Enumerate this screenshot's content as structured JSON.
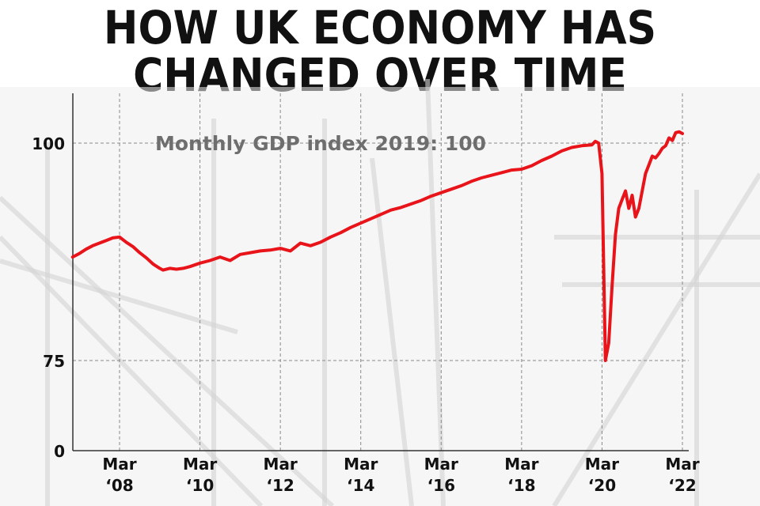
{
  "title": {
    "line1": "HOW UK ECONOMY HAS",
    "line2": "CHANGED OVER TIME"
  },
  "colors": {
    "line": "#e8141a",
    "title": "#111111",
    "subtitle": "#6e6e6e",
    "axis_text": "#111111",
    "background_tint": "#efefef"
  },
  "chart_data": {
    "type": "line",
    "title": "Monthly GDP index 2019: 100",
    "xlabel": "",
    "ylabel": "",
    "ylim": [
      0,
      100
    ],
    "y_ticks": [
      "100",
      "75",
      "0"
    ],
    "x_ticks": [
      {
        "date": "2008-03",
        "line1": "Mar",
        "line2": "‘08"
      },
      {
        "date": "2010-03",
        "line1": "Mar",
        "line2": "‘10"
      },
      {
        "date": "2012-03",
        "line1": "Mar",
        "line2": "‘12"
      },
      {
        "date": "2014-03",
        "line1": "Mar",
        "line2": "‘14"
      },
      {
        "date": "2016-03",
        "line1": "Mar",
        "line2": "‘16"
      },
      {
        "date": "2018-03",
        "line1": "Mar",
        "line2": "‘18"
      },
      {
        "date": "2020-03",
        "line1": "Mar",
        "line2": "‘20"
      },
      {
        "date": "2022-03",
        "line1": "Mar",
        "line2": "‘22"
      }
    ],
    "grid": "dashed",
    "axis_break": "between 0 and 75",
    "series": [
      {
        "values": [
          [
            "2007-01",
            86.9
          ],
          [
            "2007-03",
            87.3
          ],
          [
            "2007-05",
            87.8
          ],
          [
            "2007-07",
            88.2
          ],
          [
            "2007-09",
            88.5
          ],
          [
            "2007-11",
            88.8
          ],
          [
            "2008-01",
            89.1
          ],
          [
            "2008-03",
            89.2
          ],
          [
            "2008-05",
            88.6
          ],
          [
            "2008-07",
            88.1
          ],
          [
            "2008-09",
            87.4
          ],
          [
            "2008-11",
            86.8
          ],
          [
            "2009-01",
            86.1
          ],
          [
            "2009-03",
            85.6
          ],
          [
            "2009-04",
            85.4
          ],
          [
            "2009-06",
            85.6
          ],
          [
            "2009-08",
            85.5
          ],
          [
            "2009-10",
            85.6
          ],
          [
            "2009-12",
            85.8
          ],
          [
            "2010-03",
            86.2
          ],
          [
            "2010-06",
            86.5
          ],
          [
            "2010-09",
            86.9
          ],
          [
            "2010-12",
            86.5
          ],
          [
            "2011-03",
            87.2
          ],
          [
            "2011-06",
            87.4
          ],
          [
            "2011-09",
            87.6
          ],
          [
            "2011-12",
            87.7
          ],
          [
            "2012-03",
            87.9
          ],
          [
            "2012-06",
            87.6
          ],
          [
            "2012-09",
            88.5
          ],
          [
            "2012-12",
            88.2
          ],
          [
            "2013-03",
            88.6
          ],
          [
            "2013-06",
            89.2
          ],
          [
            "2013-09",
            89.7
          ],
          [
            "2013-12",
            90.3
          ],
          [
            "2014-03",
            90.8
          ],
          [
            "2014-06",
            91.3
          ],
          [
            "2014-09",
            91.8
          ],
          [
            "2014-12",
            92.3
          ],
          [
            "2015-03",
            92.6
          ],
          [
            "2015-06",
            93.0
          ],
          [
            "2015-09",
            93.4
          ],
          [
            "2015-12",
            93.9
          ],
          [
            "2016-03",
            94.3
          ],
          [
            "2016-06",
            94.7
          ],
          [
            "2016-09",
            95.1
          ],
          [
            "2016-12",
            95.6
          ],
          [
            "2017-03",
            96.0
          ],
          [
            "2017-06",
            96.3
          ],
          [
            "2017-09",
            96.6
          ],
          [
            "2017-12",
            96.9
          ],
          [
            "2018-03",
            97.0
          ],
          [
            "2018-06",
            97.4
          ],
          [
            "2018-09",
            98.0
          ],
          [
            "2018-12",
            98.5
          ],
          [
            "2019-03",
            99.1
          ],
          [
            "2019-06",
            99.5
          ],
          [
            "2019-09",
            99.7
          ],
          [
            "2019-12",
            99.8
          ],
          [
            "2020-01",
            100.2
          ],
          [
            "2020-02",
            100.0
          ],
          [
            "2020-03",
            96.5
          ],
          [
            "2020-04",
            75.0
          ],
          [
            "2020-05",
            77.0
          ],
          [
            "2020-06",
            83.5
          ],
          [
            "2020-07",
            89.5
          ],
          [
            "2020-08",
            92.5
          ],
          [
            "2020-09",
            93.5
          ],
          [
            "2020-10",
            94.5
          ],
          [
            "2020-11",
            92.5
          ],
          [
            "2020-12",
            94.0
          ],
          [
            "2021-01",
            91.5
          ],
          [
            "2021-02",
            92.5
          ],
          [
            "2021-03",
            94.5
          ],
          [
            "2021-04",
            96.5
          ],
          [
            "2021-05",
            97.5
          ],
          [
            "2021-06",
            98.5
          ],
          [
            "2021-07",
            98.3
          ],
          [
            "2021-08",
            98.8
          ],
          [
            "2021-09",
            99.4
          ],
          [
            "2021-10",
            99.7
          ],
          [
            "2021-11",
            100.6
          ],
          [
            "2021-12",
            100.3
          ],
          [
            "2022-01",
            101.2
          ],
          [
            "2022-02",
            101.3
          ],
          [
            "2022-03",
            101.1
          ]
        ]
      }
    ]
  }
}
